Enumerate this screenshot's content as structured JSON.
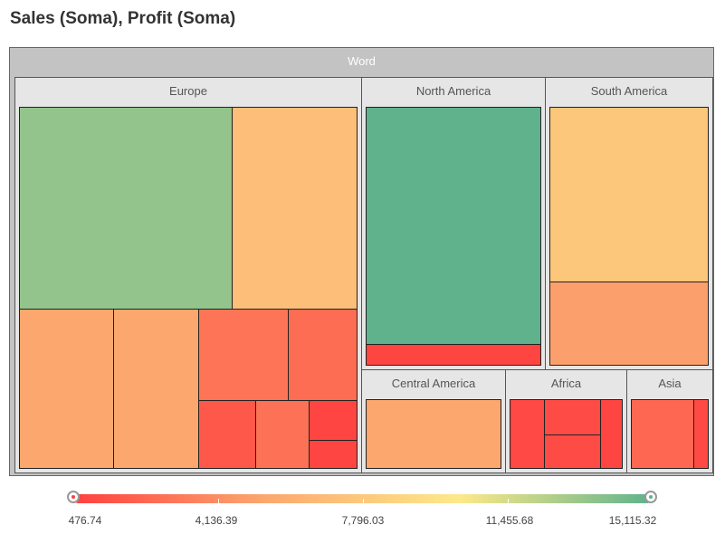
{
  "chart_data": {
    "type": "treemap",
    "title": "Sales (Soma), Profit (Soma)",
    "root": "Word",
    "groups": [
      {
        "name": "Europe",
        "color_values": [
          13500,
          7000,
          5300,
          5300,
          2900,
          2600,
          1600,
          2800,
          700,
          700
        ]
      },
      {
        "name": "North America",
        "color_values": [
          15115.32,
          700
        ]
      },
      {
        "name": "South America",
        "color_values": [
          7600,
          5000
        ]
      },
      {
        "name": "Central America",
        "color_values": [
          5300
        ]
      },
      {
        "name": "Africa",
        "color_values": [
          900,
          1000,
          1000,
          700
        ]
      },
      {
        "name": "Asia",
        "color_values": [
          2300,
          900
        ]
      }
    ],
    "color_scale": {
      "min": 476.74,
      "max": 15115.32,
      "ticks": [
        "476.74",
        "4,136.39",
        "7,796.03",
        "11,455.68",
        "15,115.32"
      ],
      "colors": [
        "#ff4040",
        "#fba86f",
        "#fde98a",
        "#5fb28c"
      ]
    }
  }
}
